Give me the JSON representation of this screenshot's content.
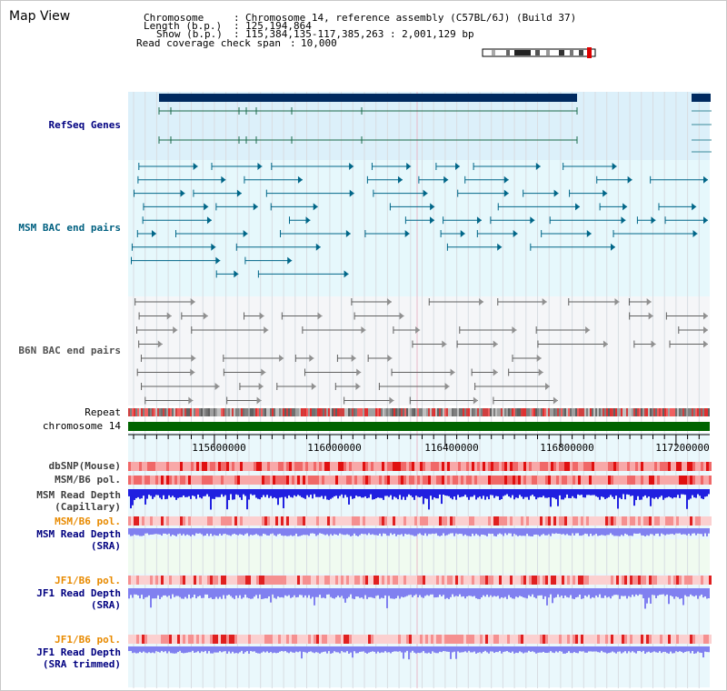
{
  "panel": {
    "title": "Map View"
  },
  "info": {
    "chromosome_label": "Chromosome",
    "chromosome_value": "Chromosome 14, reference assembly (C57BL/6J) (Build 37)",
    "length_label": "Length (b.p.)",
    "length_value": "125,194,864",
    "show_label": "Show (b.p.)",
    "show_value": "115,384,135-117,385,263 : 2,001,129 bp",
    "coverage_label": "Read coverage check span",
    "coverage_value": "10,000"
  },
  "tracks": {
    "refseq": "RefSeq Genes",
    "msm_bac": "MSM BAC end pairs",
    "b6n_bac": "B6N BAC end pairs",
    "repeat": "Repeat",
    "chromosome": "chromosome 14",
    "dbsnp": "dbSNP(Mouse)",
    "msm_b6_pol_1": "MSM/B6 pol.",
    "msm_read_depth_cap_1": "MSM Read Depth",
    "msm_read_depth_cap_2": "(Capillary)",
    "msm_b6_pol_2": "MSM/B6 pol.",
    "msm_read_depth_sra_1": "MSM Read Depth",
    "msm_read_depth_sra_2": "(SRA)",
    "jf1_b6_pol_1": "JF1/B6 pol.",
    "jf1_read_depth_sra_1": "JF1 Read Depth",
    "jf1_read_depth_sra_2": "(SRA)",
    "jf1_b6_pol_2": "JF1/B6 pol.",
    "jf1_read_depth_trim_1": "JF1 Read Depth",
    "jf1_read_depth_trim_2": "(SRA trimmed)"
  },
  "ruler": {
    "ticks": [
      "115600000",
      "116000000",
      "116400000",
      "116800000",
      "117200000"
    ]
  },
  "colors": {
    "refseq_bg": "#dcf0fa",
    "msm_bg": "#e6f8fc",
    "b6n_bg": "#f5f6f8",
    "gene_bar": "#002a60",
    "gene_line": "#1a6a4a",
    "msm_line": "#006688",
    "b6n_line": "#606060",
    "chromosome": "#006400",
    "depth_blue": "#2020e0",
    "depth_light": "#8080f0"
  }
}
